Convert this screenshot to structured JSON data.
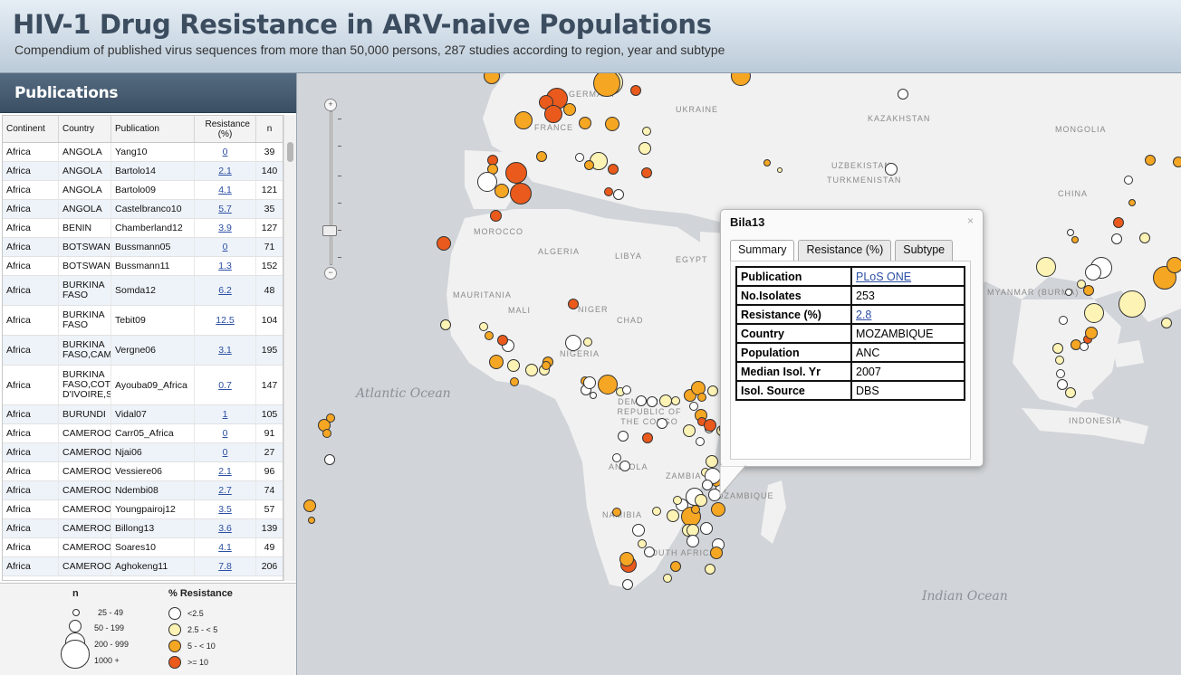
{
  "header": {
    "title": "HIV-1 Drug Resistance in ARV-naive Populations",
    "subtitle": "Compendium of published virus sequences from more than 50,000 persons, 287 studies according to region, year and subtype"
  },
  "sidebar": {
    "title": "Publications",
    "columns": [
      "Continent",
      "Country",
      "Publication",
      "Resistance (%)",
      "n"
    ],
    "rows": [
      {
        "continent": "Africa",
        "country": "ANGOLA",
        "publication": "Yang10",
        "resistance": "0",
        "n": "39"
      },
      {
        "continent": "Africa",
        "country": "ANGOLA",
        "publication": "Bartolo14",
        "resistance": "2.1",
        "n": "140"
      },
      {
        "continent": "Africa",
        "country": "ANGOLA",
        "publication": "Bartolo09",
        "resistance": "4.1",
        "n": "121"
      },
      {
        "continent": "Africa",
        "country": "ANGOLA",
        "publication": "Castelbranco10",
        "resistance": "5.7",
        "n": "35"
      },
      {
        "continent": "Africa",
        "country": "BENIN",
        "publication": "Chamberland12",
        "resistance": "3.9",
        "n": "127"
      },
      {
        "continent": "Africa",
        "country": "BOTSWANA",
        "publication": "Bussmann05",
        "resistance": "0",
        "n": "71"
      },
      {
        "continent": "Africa",
        "country": "BOTSWANA",
        "publication": "Bussmann11",
        "resistance": "1.3",
        "n": "152"
      },
      {
        "continent": "Africa",
        "country": "BURKINA FASO",
        "publication": "Somda12",
        "resistance": "6.2",
        "n": "48"
      },
      {
        "continent": "Africa",
        "country": "BURKINA FASO",
        "publication": "Tebit09",
        "resistance": "12.5",
        "n": "104"
      },
      {
        "continent": "Africa",
        "country": "BURKINA FASO,CAME",
        "publication": "Vergne06",
        "resistance": "3.1",
        "n": "195"
      },
      {
        "continent": "Africa",
        "country": "BURKINA FASO,COTE D'IVOIRE,SE",
        "publication": "Ayouba09_Africa",
        "resistance": "0.7",
        "n": "147"
      },
      {
        "continent": "Africa",
        "country": "BURUNDI",
        "publication": "Vidal07",
        "resistance": "1",
        "n": "105"
      },
      {
        "continent": "Africa",
        "country": "CAMEROON",
        "publication": "Carr05_Africa",
        "resistance": "0",
        "n": "91"
      },
      {
        "continent": "Africa",
        "country": "CAMEROON",
        "publication": "Njai06",
        "resistance": "0",
        "n": "27"
      },
      {
        "continent": "Africa",
        "country": "CAMEROON",
        "publication": "Vessiere06",
        "resistance": "2.1",
        "n": "96"
      },
      {
        "continent": "Africa",
        "country": "CAMEROON",
        "publication": "Ndembi08",
        "resistance": "2.7",
        "n": "74"
      },
      {
        "continent": "Africa",
        "country": "CAMEROON",
        "publication": "Youngpairoj12",
        "resistance": "3.5",
        "n": "57"
      },
      {
        "continent": "Africa",
        "country": "CAMEROON",
        "publication": "Billong13",
        "resistance": "3.6",
        "n": "139"
      },
      {
        "continent": "Africa",
        "country": "CAMEROON",
        "publication": "Soares10",
        "resistance": "4.1",
        "n": "49"
      },
      {
        "continent": "Africa",
        "country": "CAMEROON",
        "publication": "Aghokeng11",
        "resistance": "7.8",
        "n": "206"
      }
    ]
  },
  "legend": {
    "size_title": "n",
    "size_items": [
      "25  -  49",
      "50  -  199",
      "200  -  999",
      "1000  +"
    ],
    "color_title": "% Resistance",
    "color_items": [
      {
        "label": "<2.5",
        "color": "#ffffff"
      },
      {
        "label": "2.5 - < 5",
        "color": "#fdf3b5"
      },
      {
        "label": "5 - < 10",
        "color": "#f5a623"
      },
      {
        "label": ">= 10",
        "color": "#ea5a1c"
      }
    ]
  },
  "map": {
    "labels": [
      "GERMANY",
      "UKRAINE",
      "KAZAKHSTAN",
      "MONGOLIA",
      "FRANCE",
      "UZBEKISTAN",
      "TURKMENISTAN",
      "CHINA",
      "MOROCCO",
      "ALGERIA",
      "LIBYA",
      "EGYPT",
      "MAURITANIA",
      "MALI",
      "NIGER",
      "CHAD",
      "NIGERIA",
      "DEMOCRATIC REPUBLIC OF THE CONGO",
      "ANGOLA",
      "ZAMBIA",
      "NAMIBIA",
      "MOZAMBIQUE",
      "SOUTH AFRICA",
      "MYANMAR (BURMA)",
      "INDONESIA"
    ],
    "oceans": [
      "Atlantic Ocean",
      "Indian Ocean"
    ]
  },
  "popup": {
    "title": "Bila13",
    "close_label": "×",
    "tabs": [
      "Summary",
      "Resistance (%)",
      "Subtype"
    ],
    "rows": [
      {
        "key": "Publication",
        "value": "PLoS ONE",
        "link": true
      },
      {
        "key": "No.Isolates",
        "value": "253",
        "link": false
      },
      {
        "key": "Resistance (%)",
        "value": "2.8",
        "link": true
      },
      {
        "key": "Country",
        "value": "MOZAMBIQUE",
        "link": false
      },
      {
        "key": "Population",
        "value": "ANC",
        "link": false
      },
      {
        "key": "Median Isol. Yr",
        "value": "2007",
        "link": false
      },
      {
        "key": "Isol. Source",
        "value": "DBS",
        "link": false
      }
    ]
  }
}
